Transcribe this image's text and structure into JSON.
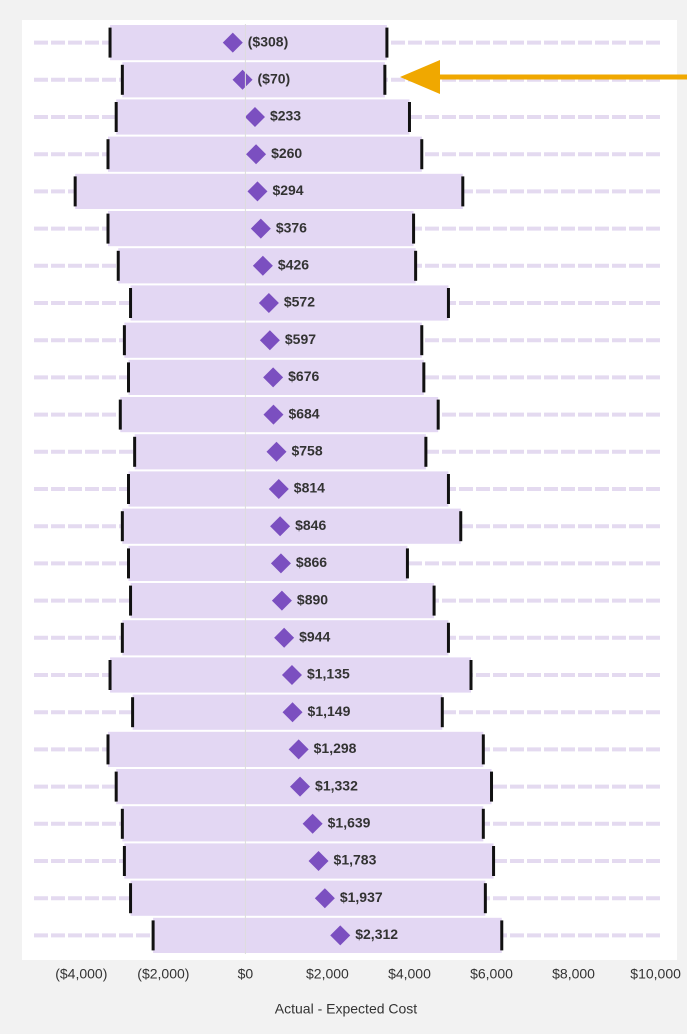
{
  "chart_data": {
    "type": "dot-range",
    "x_label": "Actual - Expected Cost",
    "values": [
      -308,
      -70,
      233,
      260,
      294,
      376,
      426,
      572,
      597,
      676,
      684,
      758,
      814,
      846,
      866,
      890,
      944,
      1135,
      1149,
      1298,
      1332,
      1639,
      1783,
      1937,
      2312
    ],
    "value_labels": [
      "($308)",
      "($70)",
      "$233",
      "$260",
      "$294",
      "$376",
      "$426",
      "$572",
      "$597",
      "$676",
      "$684",
      "$758",
      "$814",
      "$846",
      "$866",
      "$890",
      "$944",
      "$1,135",
      "$1,149",
      "$1,298",
      "$1,332",
      "$1,639",
      "$1,783",
      "$1,937",
      "$2,312"
    ],
    "lows": [
      -3300,
      -3000,
      -3150,
      -3350,
      -4150,
      -3350,
      -3100,
      -2800,
      -2950,
      -2850,
      -3050,
      -2700,
      -2850,
      -3000,
      -2850,
      -2800,
      -3000,
      -3300,
      -2750,
      -3350,
      -3150,
      -3000,
      -2950,
      -2800,
      -2250
    ],
    "highs": [
      3450,
      3400,
      4000,
      4300,
      5300,
      4100,
      4150,
      4950,
      4300,
      4350,
      4700,
      4400,
      4950,
      5250,
      3950,
      4600,
      4950,
      5500,
      4800,
      5800,
      6000,
      5800,
      6050,
      5850,
      6250
    ],
    "marker_color": "#7b4fc0",
    "range_color": "#e3d7f3",
    "xlim": [
      -5300,
      10400
    ],
    "xticks": [
      {
        "value": -4000,
        "label": "($4,000)"
      },
      {
        "value": -2000,
        "label": "($2,000)"
      },
      {
        "value": 0,
        "label": "$0"
      },
      {
        "value": 2000,
        "label": "$2,000"
      },
      {
        "value": 4000,
        "label": "$4,000"
      },
      {
        "value": 6000,
        "label": "$6,000"
      },
      {
        "value": 8000,
        "label": "$8,000"
      },
      {
        "value": 10000,
        "label": "$10,000"
      }
    ]
  }
}
